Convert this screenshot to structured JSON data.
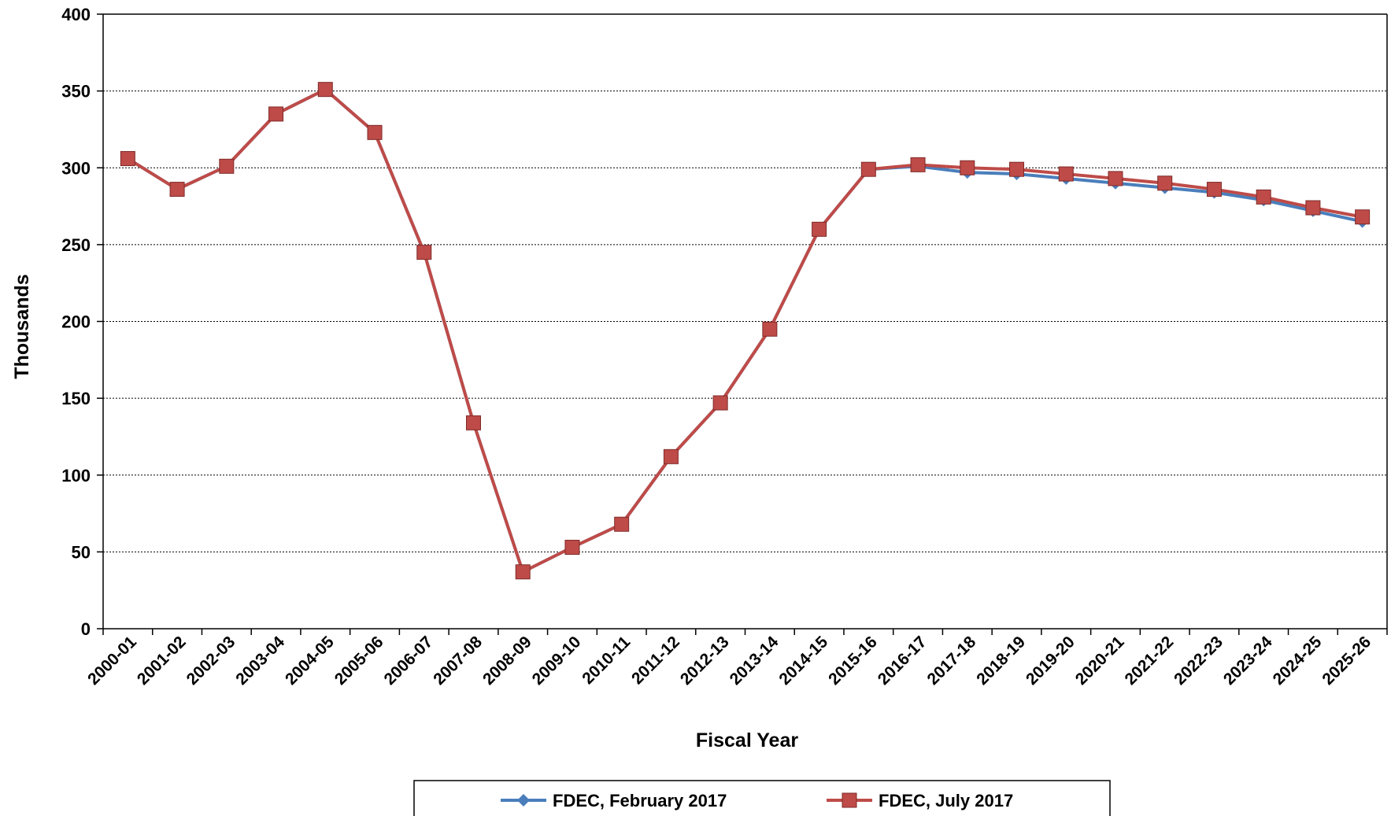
{
  "chart_data": {
    "type": "line",
    "title": "",
    "xlabel": "Fiscal Year",
    "ylabel": "Thousands",
    "ylim": [
      0,
      400
    ],
    "yticks": [
      0,
      50,
      100,
      150,
      200,
      250,
      300,
      350,
      400
    ],
    "grid": true,
    "legend_position": "bottom",
    "categories": [
      "2000-01",
      "2001-02",
      "2002-03",
      "2003-04",
      "2004-05",
      "2005-06",
      "2006-07",
      "2007-08",
      "2008-09",
      "2009-10",
      "2010-11",
      "2011-12",
      "2012-13",
      "2013-14",
      "2014-15",
      "2015-16",
      "2016-17",
      "2017-18",
      "2018-19",
      "2019-20",
      "2020-21",
      "2021-22",
      "2022-23",
      "2023-24",
      "2024-25",
      "2025-26"
    ],
    "series": [
      {
        "name": "FDEC, February 2017",
        "color": "#4A7EBB",
        "marker": "diamond",
        "values": [
          306,
          286,
          301,
          335,
          351,
          323,
          245,
          134,
          37,
          53,
          68,
          112,
          147,
          195,
          260,
          299,
          301,
          297,
          296,
          293,
          290,
          287,
          284,
          279,
          272,
          265
        ]
      },
      {
        "name": "FDEC, July 2017",
        "color": "#BE4B48",
        "marker": "square",
        "values": [
          306,
          286,
          301,
          335,
          351,
          323,
          245,
          134,
          37,
          53,
          68,
          112,
          147,
          195,
          260,
          299,
          302,
          300,
          299,
          296,
          293,
          290,
          286,
          281,
          274,
          268
        ]
      }
    ]
  }
}
